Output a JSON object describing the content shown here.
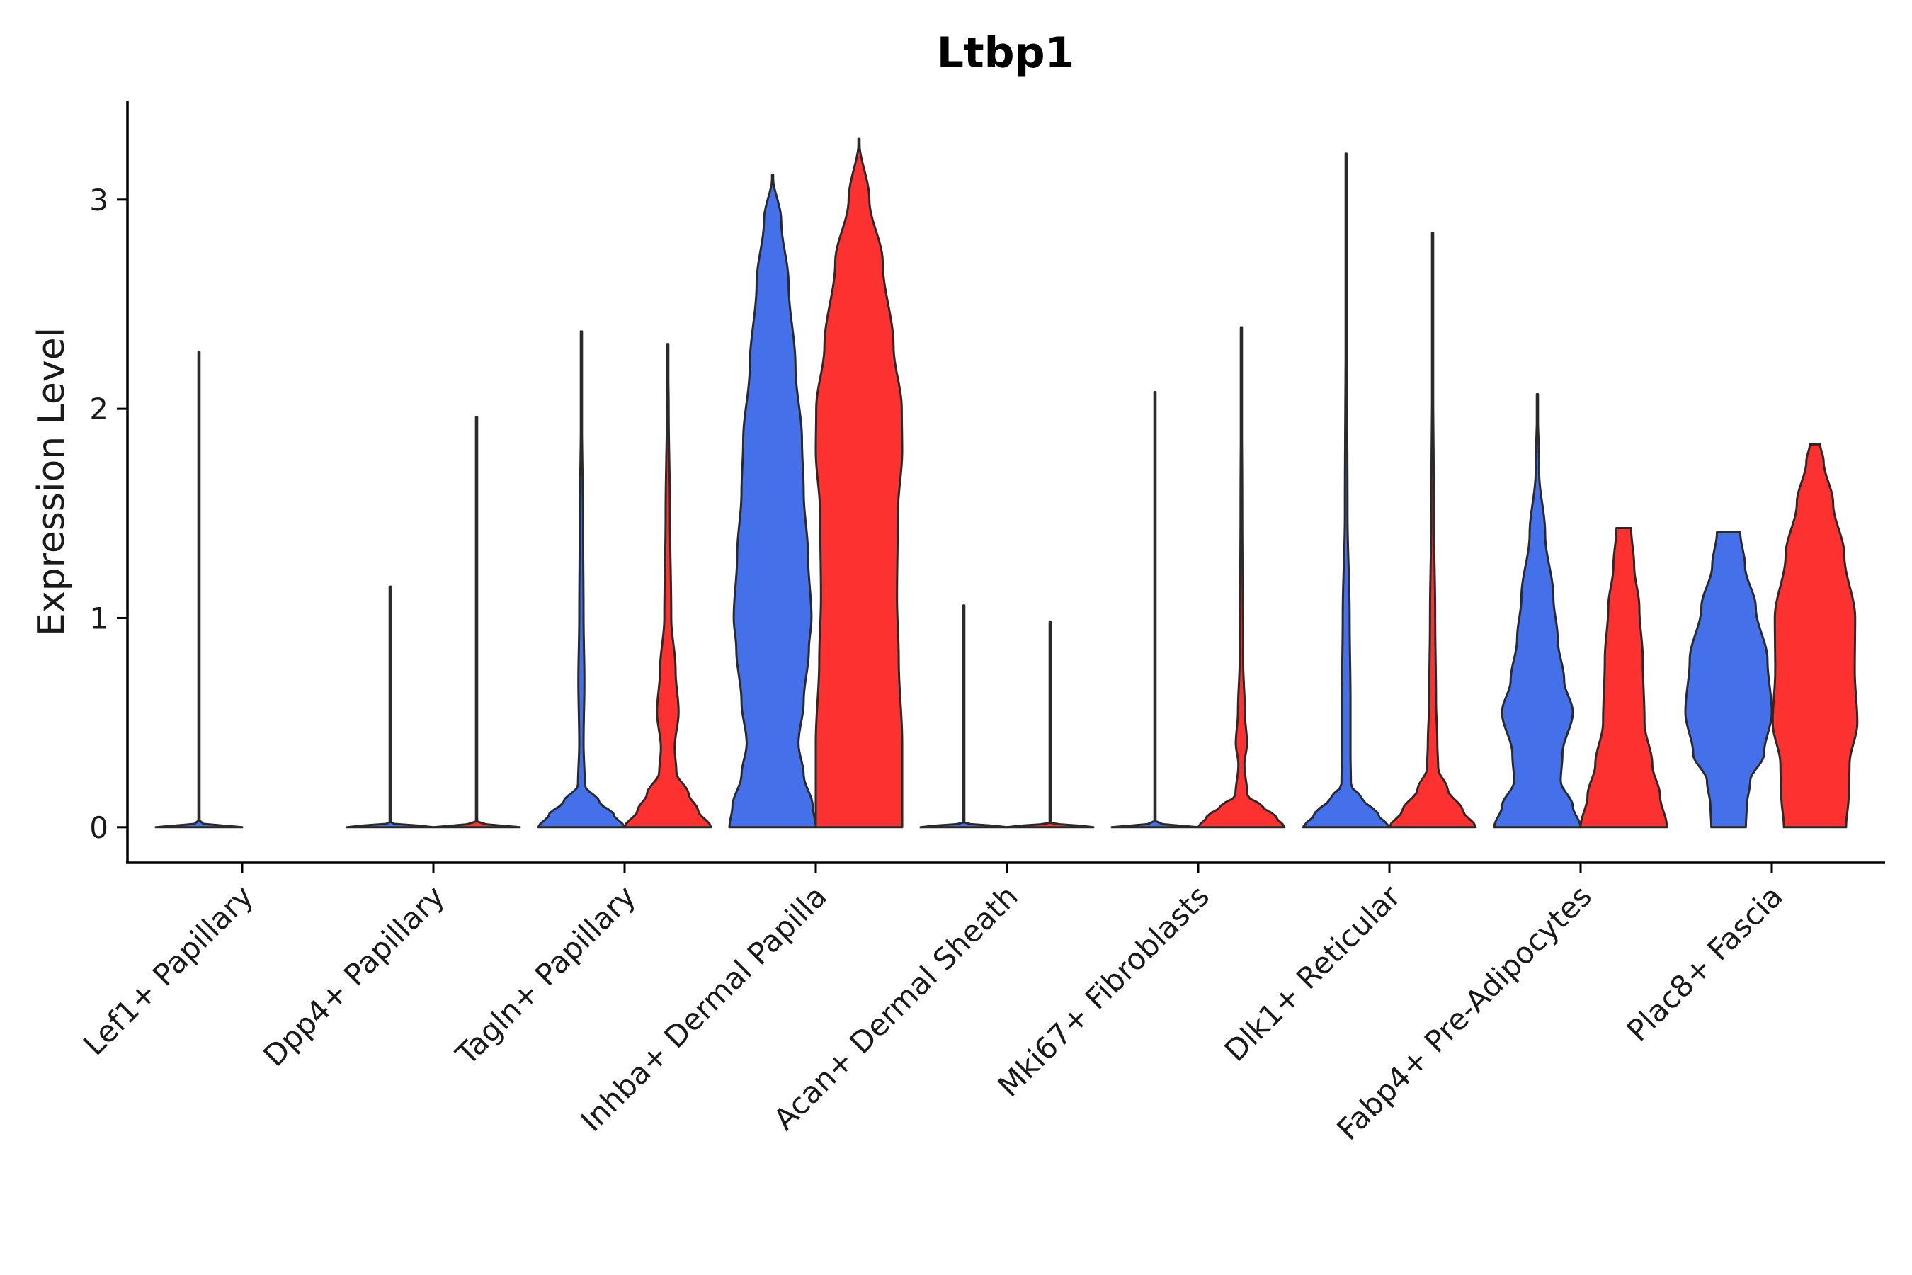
{
  "chart_data": {
    "type": "violin",
    "title": "Ltbp1",
    "xlabel": "",
    "ylabel": "Expression Level",
    "ylim": [
      -0.17,
      3.47
    ],
    "yticks": [
      0,
      1,
      2,
      3
    ],
    "grid": false,
    "legend": "none",
    "colors": {
      "series_a": "#4470ea",
      "series_b": "#fe3131",
      "outline": "#2a2a2a"
    },
    "categories": [
      "Lef1+ Papillary",
      "Dpp4+ Papillary",
      "Tagln+ Papillary",
      "Inhba+ Dermal Papilla",
      "Acan+ Dermal Sheath",
      "Mki67+ Fibroblasts",
      "Dlk1+ Reticular",
      "Fabp4+ Pre-Adipocytes",
      "Plac8+ Fascia"
    ],
    "violins": [
      {
        "category": 0,
        "series": "a",
        "max": 2.27,
        "profile": [
          [
            0,
            1.0
          ],
          [
            0.02,
            0.01
          ],
          [
            0.5,
            0.005
          ],
          [
            2.27,
            0.005
          ]
        ]
      },
      {
        "category": 1,
        "series": "a",
        "max": 1.15,
        "profile": [
          [
            0,
            1.0
          ],
          [
            0.02,
            0.01
          ],
          [
            0.5,
            0.005
          ],
          [
            1.15,
            0.005
          ]
        ]
      },
      {
        "category": 1,
        "series": "b",
        "max": 1.96,
        "profile": [
          [
            0,
            1.0
          ],
          [
            0.02,
            0.01
          ],
          [
            0.5,
            0.005
          ],
          [
            1.96,
            0.005
          ]
        ]
      },
      {
        "category": 2,
        "series": "a",
        "max": 2.37,
        "profile": [
          [
            0,
            1.0
          ],
          [
            0.06,
            0.75
          ],
          [
            0.12,
            0.42
          ],
          [
            0.2,
            0.08
          ],
          [
            0.4,
            0.05
          ],
          [
            0.7,
            0.07
          ],
          [
            1.0,
            0.05
          ],
          [
            1.4,
            0.04
          ],
          [
            2.0,
            0.01
          ],
          [
            2.37,
            0.0
          ]
        ]
      },
      {
        "category": 2,
        "series": "b",
        "max": 2.31,
        "profile": [
          [
            0,
            1.0
          ],
          [
            0.08,
            0.7
          ],
          [
            0.16,
            0.48
          ],
          [
            0.26,
            0.2
          ],
          [
            0.38,
            0.16
          ],
          [
            0.55,
            0.25
          ],
          [
            0.75,
            0.18
          ],
          [
            1.0,
            0.08
          ],
          [
            1.5,
            0.05
          ],
          [
            2.0,
            0.02
          ],
          [
            2.31,
            0.0
          ]
        ]
      },
      {
        "category": 3,
        "series": "a",
        "max": 3.12,
        "profile": [
          [
            0,
            1.0
          ],
          [
            0.1,
            0.93
          ],
          [
            0.25,
            0.72
          ],
          [
            0.4,
            0.6
          ],
          [
            0.6,
            0.72
          ],
          [
            0.85,
            0.84
          ],
          [
            1.0,
            0.9
          ],
          [
            1.3,
            0.82
          ],
          [
            1.6,
            0.72
          ],
          [
            1.85,
            0.68
          ],
          [
            2.2,
            0.53
          ],
          [
            2.6,
            0.37
          ],
          [
            2.9,
            0.2
          ],
          [
            3.12,
            0.0
          ]
        ]
      },
      {
        "category": 3,
        "series": "b",
        "max": 3.29,
        "profile": [
          [
            0,
            1.0
          ],
          [
            0.4,
            1.0
          ],
          [
            0.8,
            0.92
          ],
          [
            1.1,
            0.88
          ],
          [
            1.5,
            0.9
          ],
          [
            1.8,
            1.0
          ],
          [
            2.0,
            0.99
          ],
          [
            2.3,
            0.8
          ],
          [
            2.7,
            0.55
          ],
          [
            3.0,
            0.24
          ],
          [
            3.29,
            0.0
          ]
        ]
      },
      {
        "category": 4,
        "series": "a",
        "max": 1.06,
        "profile": [
          [
            0,
            1.0
          ],
          [
            0.02,
            0.01
          ],
          [
            0.5,
            0.005
          ],
          [
            1.06,
            0.005
          ]
        ]
      },
      {
        "category": 4,
        "series": "b",
        "max": 0.98,
        "profile": [
          [
            0,
            1.0
          ],
          [
            0.02,
            0.01
          ],
          [
            0.5,
            0.005
          ],
          [
            0.98,
            0.005
          ]
        ]
      },
      {
        "category": 5,
        "series": "a",
        "max": 2.08,
        "profile": [
          [
            0,
            1.0
          ],
          [
            0.02,
            0.01
          ],
          [
            0.5,
            0.005
          ],
          [
            2.08,
            0.005
          ]
        ]
      },
      {
        "category": 5,
        "series": "b",
        "max": 2.39,
        "profile": [
          [
            0,
            1.0
          ],
          [
            0.05,
            0.8
          ],
          [
            0.1,
            0.48
          ],
          [
            0.15,
            0.14
          ],
          [
            0.3,
            0.07
          ],
          [
            0.4,
            0.13
          ],
          [
            0.55,
            0.08
          ],
          [
            0.8,
            0.04
          ],
          [
            1.5,
            0.02
          ],
          [
            2.39,
            0.0
          ]
        ]
      },
      {
        "category": 6,
        "series": "a",
        "max": 3.22,
        "profile": [
          [
            0,
            1.0
          ],
          [
            0.06,
            0.74
          ],
          [
            0.14,
            0.36
          ],
          [
            0.2,
            0.11
          ],
          [
            0.35,
            0.1
          ],
          [
            0.6,
            0.1
          ],
          [
            1.0,
            0.08
          ],
          [
            1.5,
            0.03
          ],
          [
            2.5,
            0.01
          ],
          [
            3.22,
            0.0
          ]
        ]
      },
      {
        "category": 6,
        "series": "b",
        "max": 2.84,
        "profile": [
          [
            0,
            1.0
          ],
          [
            0.08,
            0.7
          ],
          [
            0.18,
            0.35
          ],
          [
            0.28,
            0.13
          ],
          [
            0.4,
            0.11
          ],
          [
            0.6,
            0.08
          ],
          [
            1.0,
            0.06
          ],
          [
            1.5,
            0.03
          ],
          [
            2.2,
            0.01
          ],
          [
            2.84,
            0.0
          ]
        ]
      },
      {
        "category": 7,
        "series": "a",
        "max": 2.07,
        "profile": [
          [
            0,
            1.0
          ],
          [
            0.1,
            0.82
          ],
          [
            0.22,
            0.54
          ],
          [
            0.35,
            0.58
          ],
          [
            0.55,
            0.82
          ],
          [
            0.7,
            0.62
          ],
          [
            0.9,
            0.47
          ],
          [
            1.1,
            0.37
          ],
          [
            1.4,
            0.18
          ],
          [
            1.7,
            0.04
          ],
          [
            2.07,
            0.0
          ]
        ]
      },
      {
        "category": 7,
        "series": "b",
        "max": 1.43,
        "profile": [
          [
            0,
            1.0
          ],
          [
            0.15,
            0.84
          ],
          [
            0.3,
            0.66
          ],
          [
            0.5,
            0.48
          ],
          [
            0.8,
            0.44
          ],
          [
            1.05,
            0.36
          ],
          [
            1.25,
            0.24
          ],
          [
            1.43,
            0.17
          ]
        ]
      },
      {
        "category": 8,
        "series": "a",
        "max": 1.41,
        "profile": [
          [
            0,
            0.4
          ],
          [
            0.1,
            0.42
          ],
          [
            0.22,
            0.5
          ],
          [
            0.35,
            0.82
          ],
          [
            0.55,
            1.0
          ],
          [
            0.8,
            0.9
          ],
          [
            1.05,
            0.63
          ],
          [
            1.25,
            0.38
          ],
          [
            1.41,
            0.27
          ]
        ]
      },
      {
        "category": 8,
        "series": "b",
        "max": 1.83,
        "profile": [
          [
            0,
            0.72
          ],
          [
            0.15,
            0.78
          ],
          [
            0.3,
            0.8
          ],
          [
            0.5,
            0.98
          ],
          [
            0.75,
            0.92
          ],
          [
            1.0,
            0.93
          ],
          [
            1.3,
            0.68
          ],
          [
            1.55,
            0.42
          ],
          [
            1.75,
            0.2
          ],
          [
            1.83,
            0.12
          ]
        ]
      }
    ]
  }
}
